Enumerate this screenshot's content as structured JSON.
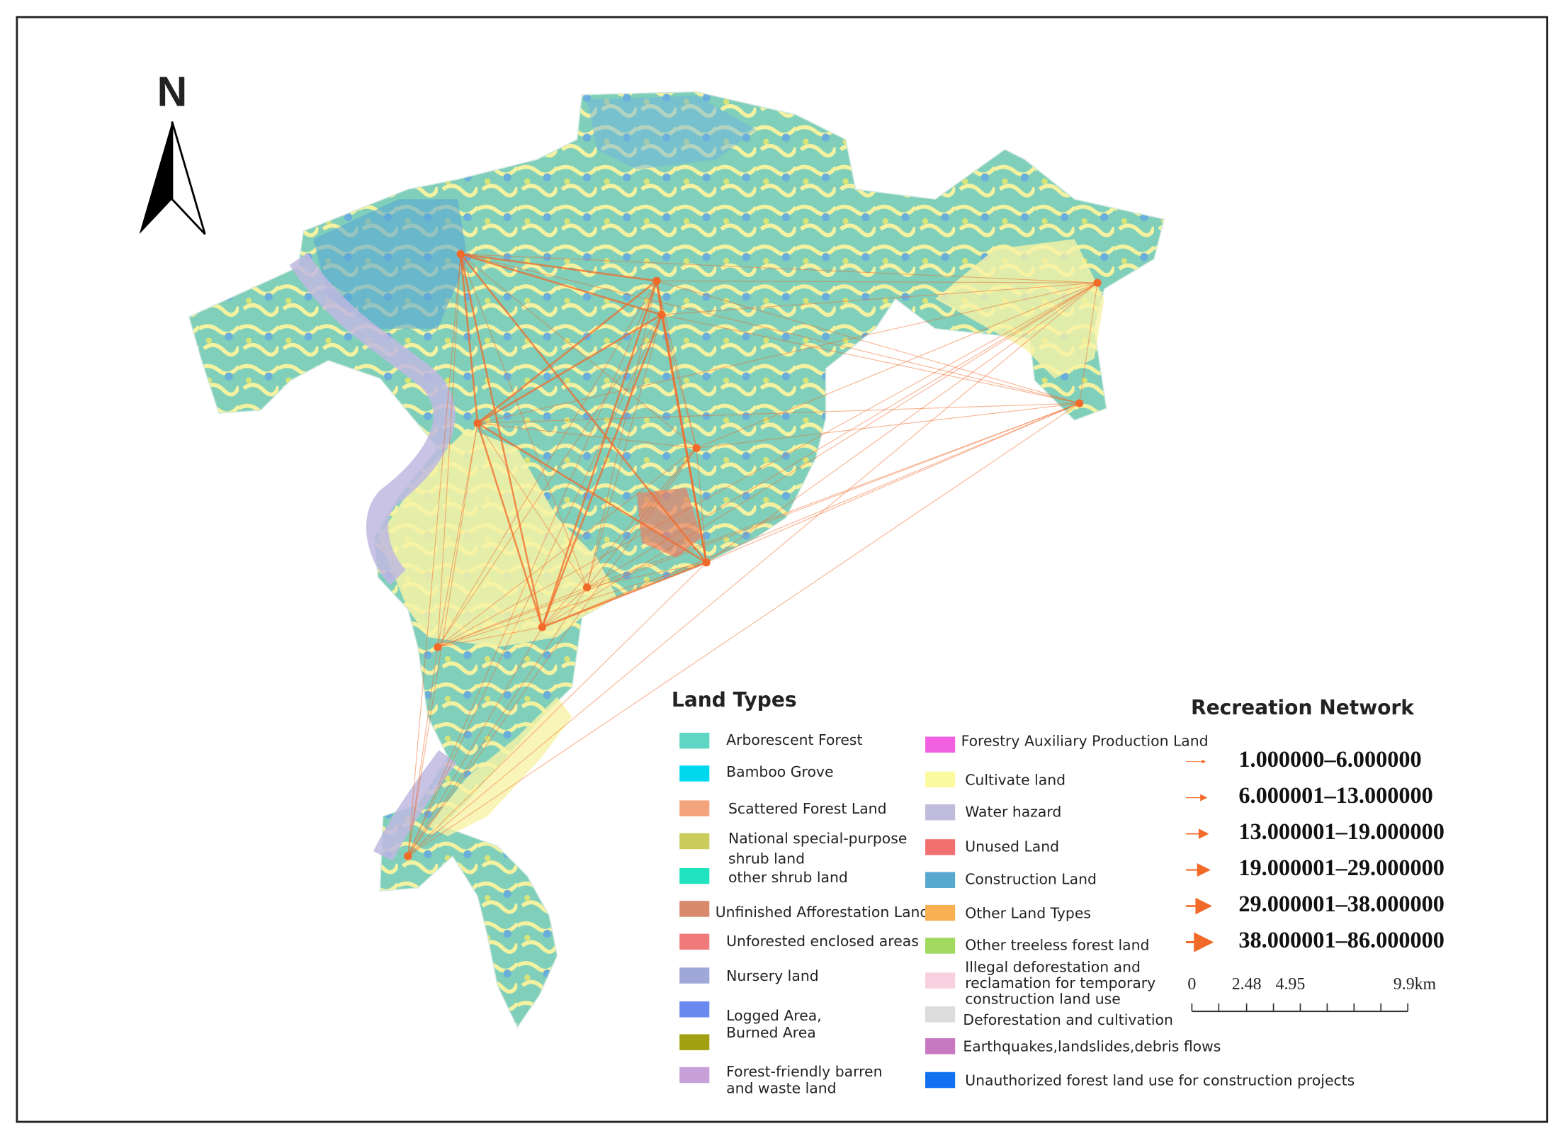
{
  "north_label": "N",
  "land_types": {
    "title": "Land Types",
    "items": [
      {
        "lines": [
          "Arborescent Forest"
        ],
        "color": "#5fd6c4"
      },
      {
        "lines": [
          "Bamboo Grove"
        ],
        "color": "#00d8f0"
      },
      {
        "lines": [
          "Scattered Forest Land"
        ],
        "color": "#f4a47c"
      },
      {
        "lines": [
          "National special-purpose",
          "shrub land"
        ],
        "color": "#c9cc5a"
      },
      {
        "lines": [
          "other shrub land"
        ],
        "color": "#20e4c0"
      },
      {
        "lines": [
          "Unfinished Afforestation Land"
        ],
        "color": "#d98a6c"
      },
      {
        "lines": [
          "Unforested enclosed areas"
        ],
        "color": "#f07a7a"
      },
      {
        "lines": [
          "Nursery land"
        ],
        "color": "#9fa8d8"
      },
      {
        "lines": [
          "Logged Area,"
        ],
        "color": "#6a8af0"
      },
      {
        "lines": [
          "Burned Area"
        ],
        "color": "#a0a010"
      },
      {
        "lines": [
          "Forest-friendly barren",
          "and waste land"
        ],
        "color": "#c8a0d8"
      },
      {
        "lines": [
          "Forestry Auxiliary Production Land"
        ],
        "color": "#f060e0"
      },
      {
        "lines": [
          "Cultivate land"
        ],
        "color": "#fafaa0"
      },
      {
        "lines": [
          "Water hazard"
        ],
        "color": "#c0bcdc"
      },
      {
        "lines": [
          "Unused Land"
        ],
        "color": "#f07070"
      },
      {
        "lines": [
          "Construction Land"
        ],
        "color": "#58a8d0"
      },
      {
        "lines": [
          "Other Land Types"
        ],
        "color": "#f8b050"
      },
      {
        "lines": [
          "Other treeless forest land"
        ],
        "color": "#a0d860"
      },
      {
        "lines": [
          "Illegal deforestation and",
          "reclamation for temporary",
          "construction land use"
        ],
        "color": "#f8d0e0"
      },
      {
        "lines": [
          "Deforestation and cultivation"
        ],
        "color": "#dcdcdc"
      },
      {
        "lines": [
          "Earthquakes,landslides,debris flows"
        ],
        "color": "#c878c0"
      },
      {
        "lines": [
          "Unauthorized forest land use for construction projects"
        ],
        "color": "#1070f0"
      }
    ]
  },
  "recreation_network": {
    "title": "Recreation Network",
    "color": "#f26a2a",
    "classes": [
      "1.000000–6.000000",
      "6.000001–13.000000",
      "13.000001–19.000000",
      "19.000001–29.000000",
      "29.000001–38.000000",
      "38.000001–86.000000"
    ]
  },
  "scale_bar": {
    "labels": [
      "0",
      "2.48",
      "4.95",
      "9.9km"
    ]
  }
}
